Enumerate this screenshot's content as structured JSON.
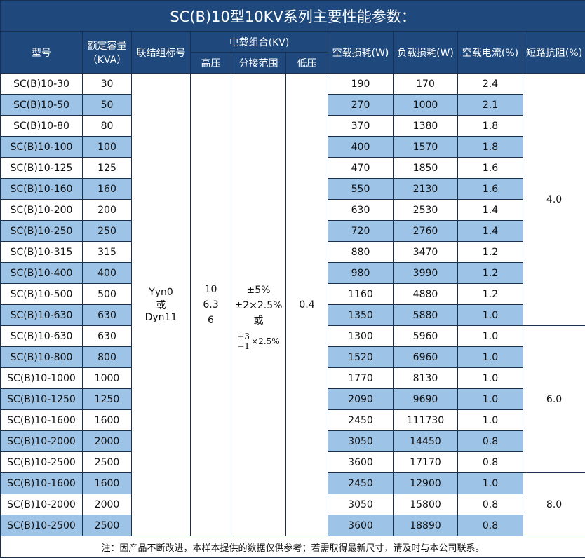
{
  "title": "SC(B)10型10KV系列主要性能参数：",
  "headers": {
    "model": "型号",
    "capacity": "额定容量",
    "capacity_unit": "（KVA）",
    "vector": "联结组标号",
    "voltage": "电载组合(KV)",
    "hv": "高压",
    "tap": "分接范围",
    "lv": "低压",
    "noload_loss": "空载损耗(W)",
    "load_loss": "负载损耗(W)",
    "noload_current": "空载电流(%)",
    "impedance": "短路抗阻(%)"
  },
  "merged": {
    "vector_1": "Yyn0",
    "vector_or": "或",
    "vector_2": "Dyn11",
    "hv_1": "10",
    "hv_2": "6.3",
    "hv_3": "6",
    "tap_1": "±5%",
    "tap_2": "±2×2.5%",
    "tap_or": "或",
    "tap_sup": "+3",
    "tap_sub": "−1",
    "tap_mult": "×2.5%",
    "lv": "0.4"
  },
  "impedance_groups": [
    "4.0",
    "6.0",
    "8.0"
  ],
  "rows": [
    [
      "SC(B)10-30",
      "30",
      "190",
      "170",
      "2.4"
    ],
    [
      "SC(B)10-50",
      "50",
      "270",
      "1000",
      "2.1"
    ],
    [
      "SC(B)10-80",
      "80",
      "370",
      "1380",
      "1.8"
    ],
    [
      "SC(B)10-100",
      "100",
      "400",
      "1570",
      "1.8"
    ],
    [
      "SC(B)10-125",
      "125",
      "470",
      "1850",
      "1.6"
    ],
    [
      "SC(B)10-160",
      "160",
      "550",
      "2130",
      "1.6"
    ],
    [
      "SC(B)10-200",
      "200",
      "630",
      "2530",
      "1.4"
    ],
    [
      "SC(B)10-250",
      "250",
      "720",
      "2760",
      "1.4"
    ],
    [
      "SC(B)10-315",
      "315",
      "880",
      "3470",
      "1.2"
    ],
    [
      "SC(B)10-400",
      "400",
      "980",
      "3990",
      "1.2"
    ],
    [
      "SC(B)10-500",
      "500",
      "1160",
      "4880",
      "1.2"
    ],
    [
      "SC(B)10-630",
      "630",
      "1350",
      "5880",
      "1.0"
    ],
    [
      "SC(B)10-630",
      "630",
      "1300",
      "5960",
      "1.0"
    ],
    [
      "SC(B)10-800",
      "800",
      "1520",
      "6960",
      "1.0"
    ],
    [
      "SC(B)10-1000",
      "1000",
      "1770",
      "8130",
      "1.0"
    ],
    [
      "SC(B)10-1250",
      "1250",
      "2090",
      "9690",
      "1.0"
    ],
    [
      "SC(B)10-1600",
      "1600",
      "2450",
      "111730",
      "1.0"
    ],
    [
      "SC(B)10-2000",
      "2000",
      "3050",
      "14450",
      "0.8"
    ],
    [
      "SC(B)10-2500",
      "2500",
      "3600",
      "17170",
      "0.8"
    ],
    [
      "SC(B)10-1600",
      "1600",
      "2450",
      "12900",
      "1.0"
    ],
    [
      "SC(B)10-2000",
      "2000",
      "3050",
      "15800",
      "0.8"
    ],
    [
      "SC(B)10-2500",
      "2500",
      "3600",
      "18890",
      "0.8"
    ]
  ],
  "footer": "注：因产品不断改进，本样本提供的数据仅供参考；若需取得最新尺寸，请及时与本公司联系。",
  "colors": {
    "header": "#1f497d",
    "highlight": "#9dc3e6"
  }
}
